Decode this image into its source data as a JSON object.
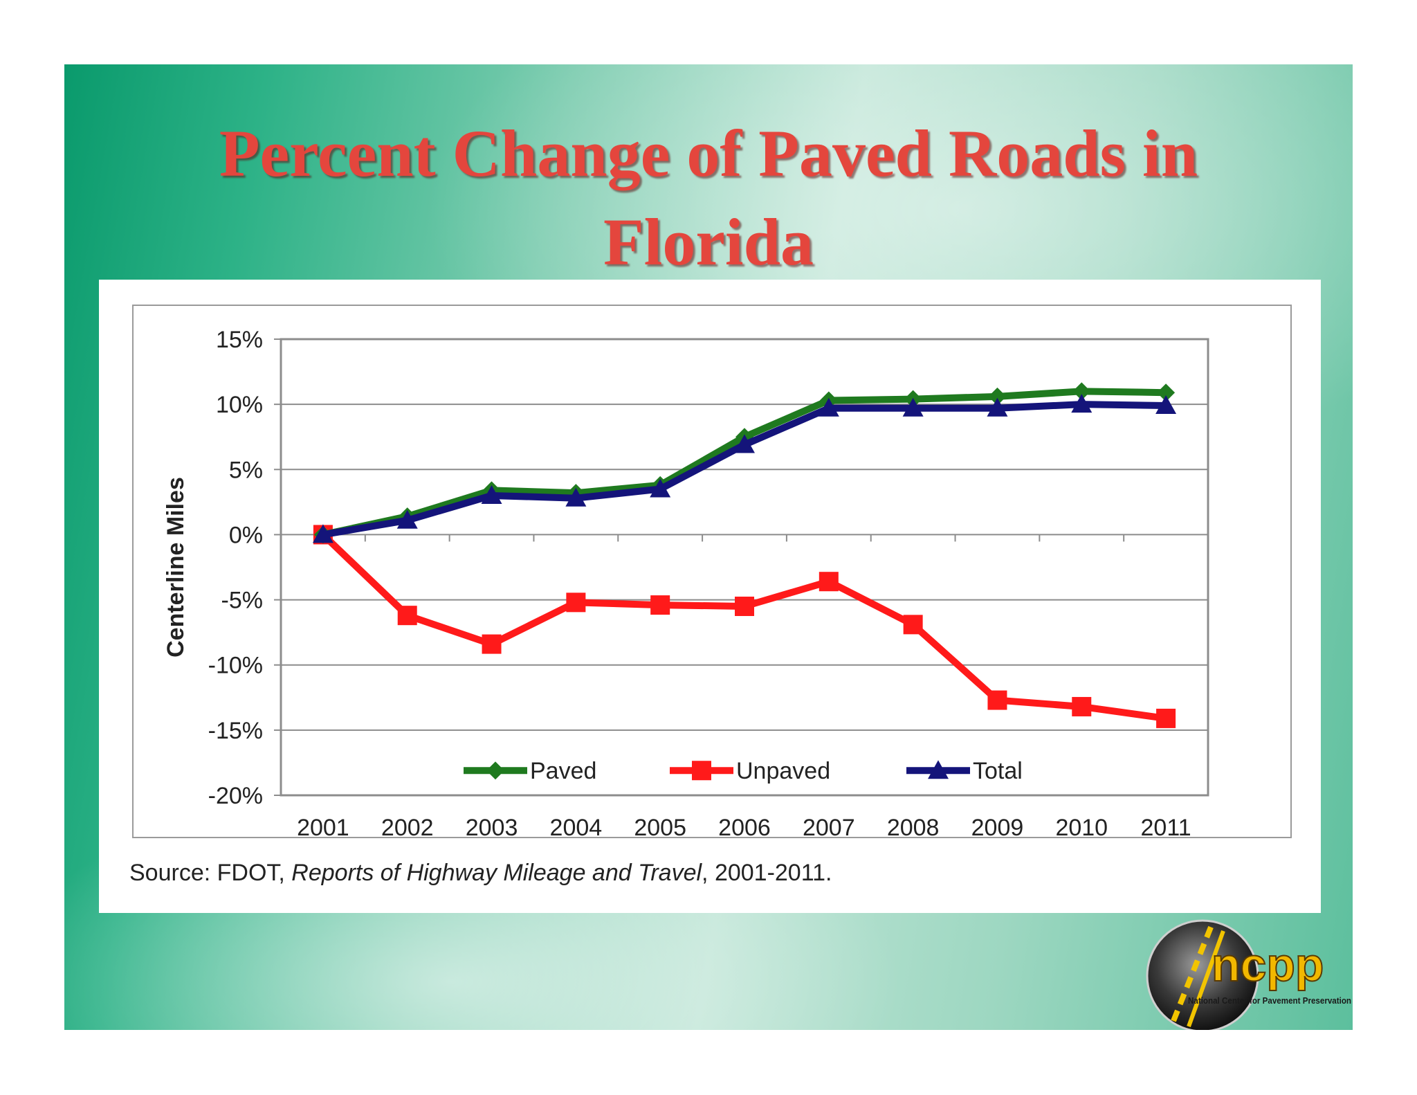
{
  "slide": {
    "title_line1": "Percent Change of Paved Roads in",
    "title_line2": "Florida",
    "source_prefix": "Source:  FDOT, ",
    "source_title": "Reports of Highway Mileage and Travel",
    "source_suffix": ", 2001-2011."
  },
  "logo": {
    "text": "ncpp",
    "subtitle": "National Center for Pavement Preservation"
  },
  "colors": {
    "title": "#e4463d",
    "paved": "#1f7a1f",
    "unpaved": "#ff1a1a",
    "total": "#14147a"
  },
  "chart_data": {
    "type": "line",
    "title": "",
    "ylabel": "Centerline Miles",
    "xlabel": "",
    "categories": [
      "2001",
      "2002",
      "2003",
      "2004",
      "2005",
      "2006",
      "2007",
      "2008",
      "2009",
      "2010",
      "2011"
    ],
    "ylim": [
      -20,
      15
    ],
    "yticks": [
      15,
      10,
      5,
      0,
      -5,
      -10,
      -15,
      -20
    ],
    "ytick_labels": [
      "15%",
      "10%",
      "5%",
      "0%",
      "-5%",
      "-10%",
      "-15%",
      "-20%"
    ],
    "grid": true,
    "legend_position": "bottom-inside",
    "series": [
      {
        "name": "Paved",
        "color": "#1f7a1f",
        "marker": "diamond",
        "values": [
          0,
          1.4,
          3.4,
          3.2,
          3.8,
          7.5,
          10.3,
          10.4,
          10.6,
          11.0,
          10.9
        ]
      },
      {
        "name": "Unpaved",
        "color": "#ff1a1a",
        "marker": "square",
        "values": [
          0,
          -6.2,
          -8.4,
          -5.2,
          -5.4,
          -5.5,
          -3.6,
          -6.9,
          -12.7,
          -13.2,
          -14.1
        ]
      },
      {
        "name": "Total",
        "color": "#14147a",
        "marker": "triangle",
        "values": [
          0,
          1.1,
          3.0,
          2.8,
          3.5,
          6.9,
          9.7,
          9.7,
          9.7,
          10.0,
          9.9
        ]
      }
    ]
  }
}
